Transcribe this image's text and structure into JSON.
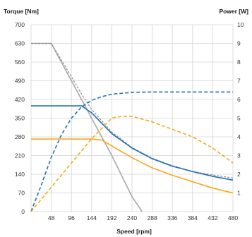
{
  "chart_data": {
    "type": "line",
    "xlabel": "Speed [rpm]",
    "ylabel_left": "Torque [Nm]",
    "ylabel_right": "Power [W]",
    "xlim": [
      0,
      480
    ],
    "xticks": [
      48,
      96,
      144,
      192,
      240,
      288,
      336,
      384,
      432,
      480
    ],
    "ylim_left": [
      0,
      700
    ],
    "yticks_left": [
      0,
      70,
      140,
      210,
      280,
      350,
      420,
      490,
      560,
      630,
      700
    ],
    "ylim_right": [
      0,
      10
    ],
    "yticks_right": [
      1,
      2,
      3,
      4,
      5,
      6,
      7,
      8,
      9,
      10
    ],
    "grid": true,
    "colors": {
      "blue": "#1f6fb2",
      "orange": "#f5a81c",
      "gray": "#a8a8a8",
      "dark_gray": "#8a8a8a"
    },
    "series": [
      {
        "axis": "left",
        "style": "solid",
        "color": "gray",
        "x": [
          0,
          24,
          48,
          96,
          144,
          192,
          240,
          264
        ],
        "y": [
          630,
          630,
          630,
          490,
          350,
          210,
          56,
          0
        ]
      },
      {
        "axis": "left",
        "style": "dashed",
        "color": "dark_gray",
        "x": [
          0,
          24,
          48,
          96,
          120,
          144,
          192,
          240,
          288,
          336,
          384,
          432,
          480
        ],
        "y": [
          630,
          630,
          630,
          505,
          440,
          383,
          298,
          240,
          200,
          172,
          150,
          137,
          126
        ]
      },
      {
        "axis": "left",
        "style": "solid",
        "color": "blue",
        "x": [
          0,
          48,
          96,
          120,
          144,
          192,
          240,
          288,
          336,
          384,
          432,
          480
        ],
        "y": [
          396,
          396,
          396,
          396,
          370,
          292,
          238,
          198,
          170,
          150,
          132,
          118
        ]
      },
      {
        "axis": "left",
        "style": "solid",
        "color": "orange",
        "x": [
          0,
          48,
          96,
          144,
          168,
          192,
          240,
          288,
          336,
          384,
          432,
          480
        ],
        "y": [
          272,
          272,
          272,
          272,
          268,
          246,
          202,
          164,
          136,
          112,
          88,
          70
        ]
      },
      {
        "axis": "right",
        "style": "dashed",
        "color": "blue",
        "x": [
          0,
          24,
          48,
          72,
          96,
          120,
          144,
          168,
          192,
          240,
          288,
          336,
          384,
          432,
          480
        ],
        "y": [
          0,
          1.4,
          2.9,
          4.1,
          5.0,
          5.6,
          5.95,
          6.15,
          6.28,
          6.38,
          6.4,
          6.4,
          6.4,
          6.4,
          6.4
        ]
      },
      {
        "axis": "right",
        "style": "dashed",
        "color": "orange",
        "x": [
          0,
          48,
          96,
          144,
          192,
          216,
          240,
          288,
          336,
          384,
          432,
          480
        ],
        "y": [
          0,
          1.3,
          2.6,
          3.9,
          5.0,
          5.1,
          5.1,
          4.8,
          4.4,
          4.0,
          3.4,
          2.6
        ]
      }
    ]
  }
}
